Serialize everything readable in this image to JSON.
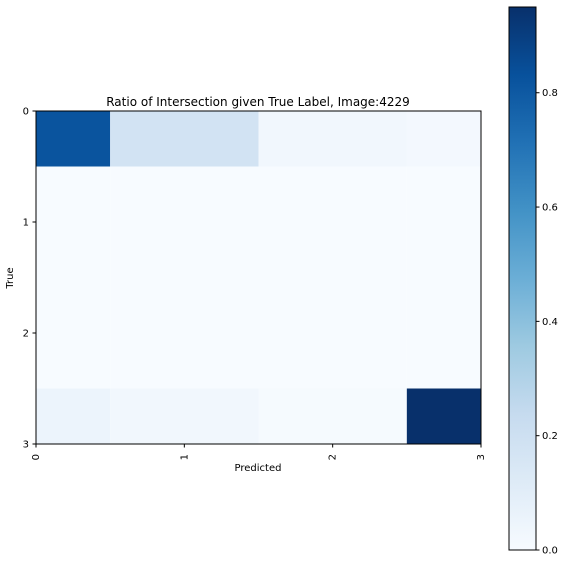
{
  "chart_data": {
    "type": "heatmap",
    "title": "Ratio of Intersection given True Label, Image:4229",
    "xlabel": "Predicted",
    "ylabel": "True",
    "x_categories": [
      "0",
      "1",
      "2",
      "3"
    ],
    "y_categories": [
      "0",
      "1",
      "2",
      "3"
    ],
    "matrix": [
      [
        0.82,
        0.18,
        0.03,
        0.02
      ],
      [
        0.0,
        0.0,
        0.0,
        0.0
      ],
      [
        0.0,
        0.0,
        0.0,
        0.0
      ],
      [
        0.05,
        0.03,
        0.01,
        0.95
      ]
    ],
    "colormap": "Blues",
    "colorbar": {
      "min": 0.0,
      "max": 0.95,
      "ticks": [
        0.0,
        0.2,
        0.4,
        0.6,
        0.8
      ],
      "tick_labels": [
        "0.0",
        "0.2",
        "0.4",
        "0.6",
        "0.8"
      ]
    },
    "ylim": [
      3,
      0
    ],
    "xlim": [
      0,
      3
    ],
    "x_tick_rotation": "vertical",
    "grid": false
  }
}
